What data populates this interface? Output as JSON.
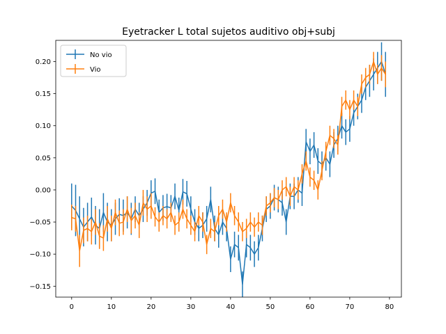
{
  "chart_data": {
    "type": "line",
    "title": "Eyetracker L total sujetos auditivo obj+subj",
    "xlabel": "",
    "ylabel": "",
    "xlim": [
      -4,
      83
    ],
    "ylim": [
      -0.167,
      0.233
    ],
    "xticks": [
      0,
      10,
      20,
      30,
      40,
      50,
      60,
      70,
      80
    ],
    "yticks": [
      -0.15,
      -0.1,
      -0.05,
      0.0,
      0.05,
      0.1,
      0.15,
      0.2
    ],
    "ytick_labels": [
      "−0.15",
      "−0.10",
      "−0.05",
      "0.00",
      "0.05",
      "0.10",
      "0.15",
      "0.20"
    ],
    "grid": false,
    "legend": "top-left",
    "error_bars": true,
    "series": [
      {
        "name": "No vio",
        "color": "#1f77b4",
        "x": [
          0,
          1,
          2,
          3,
          4,
          5,
          6,
          7,
          8,
          9,
          10,
          11,
          12,
          13,
          14,
          15,
          16,
          17,
          18,
          19,
          20,
          21,
          22,
          23,
          24,
          25,
          26,
          27,
          28,
          29,
          30,
          31,
          32,
          33,
          34,
          35,
          36,
          37,
          38,
          39,
          40,
          41,
          42,
          43,
          44,
          45,
          46,
          47,
          48,
          49,
          50,
          51,
          52,
          53,
          54,
          55,
          56,
          57,
          58,
          59,
          60,
          61,
          62,
          63,
          64,
          65,
          66,
          67,
          68,
          69,
          70,
          71,
          72,
          73,
          74,
          75,
          76,
          77,
          78,
          79
        ],
        "values": [
          -0.025,
          -0.032,
          -0.045,
          -0.058,
          -0.05,
          -0.042,
          -0.055,
          -0.06,
          -0.035,
          -0.05,
          -0.055,
          -0.045,
          -0.038,
          -0.04,
          -0.035,
          -0.045,
          -0.03,
          -0.04,
          -0.03,
          -0.02,
          -0.005,
          -0.002,
          -0.035,
          -0.028,
          -0.026,
          -0.028,
          -0.01,
          -0.032,
          -0.003,
          -0.006,
          -0.03,
          -0.05,
          -0.06,
          -0.055,
          -0.045,
          -0.015,
          -0.06,
          -0.07,
          -0.05,
          -0.06,
          -0.108,
          -0.085,
          -0.09,
          -0.147,
          -0.085,
          -0.09,
          -0.1,
          -0.09,
          -0.06,
          -0.03,
          -0.025,
          -0.012,
          -0.015,
          -0.02,
          -0.05,
          -0.01,
          -0.01,
          0.0,
          -0.005,
          0.075,
          0.06,
          0.07,
          0.045,
          0.04,
          0.05,
          0.04,
          0.07,
          0.08,
          0.1,
          0.09,
          0.095,
          0.12,
          0.13,
          0.14,
          0.16,
          0.17,
          0.18,
          0.19,
          0.2,
          0.18
        ],
        "errors": [
          0.035,
          0.04,
          0.035,
          0.03,
          0.03,
          0.03,
          0.03,
          0.03,
          0.03,
          0.03,
          0.025,
          0.025,
          0.025,
          0.025,
          0.025,
          0.025,
          0.02,
          0.02,
          0.02,
          0.02,
          0.02,
          0.02,
          0.02,
          0.02,
          0.02,
          0.02,
          0.02,
          0.02,
          0.02,
          0.02,
          0.02,
          0.02,
          0.02,
          0.02,
          0.02,
          0.02,
          0.02,
          0.02,
          0.02,
          0.02,
          0.02,
          0.02,
          0.02,
          0.02,
          0.02,
          0.02,
          0.02,
          0.02,
          0.02,
          0.02,
          0.02,
          0.02,
          0.02,
          0.02,
          0.02,
          0.02,
          0.02,
          0.02,
          0.02,
          0.02,
          0.02,
          0.02,
          0.02,
          0.02,
          0.02,
          0.02,
          0.02,
          0.02,
          0.02,
          0.02,
          0.02,
          0.02,
          0.02,
          0.02,
          0.02,
          0.025,
          0.025,
          0.025,
          0.03,
          0.035
        ]
      },
      {
        "name": "Vio",
        "color": "#ff7f0e",
        "x": [
          0,
          1,
          2,
          3,
          4,
          5,
          6,
          7,
          8,
          9,
          10,
          11,
          12,
          13,
          14,
          15,
          16,
          17,
          18,
          19,
          20,
          21,
          22,
          23,
          24,
          25,
          26,
          27,
          28,
          29,
          30,
          31,
          32,
          33,
          34,
          35,
          36,
          37,
          38,
          39,
          40,
          41,
          42,
          43,
          44,
          45,
          46,
          47,
          48,
          49,
          50,
          51,
          52,
          53,
          54,
          55,
          56,
          57,
          58,
          59,
          60,
          61,
          62,
          63,
          64,
          65,
          66,
          67,
          68,
          69,
          70,
          71,
          72,
          73,
          74,
          75,
          76,
          77,
          78,
          79
        ],
        "values": [
          -0.043,
          -0.045,
          -0.095,
          -0.063,
          -0.06,
          -0.065,
          -0.05,
          -0.072,
          -0.075,
          -0.045,
          -0.06,
          -0.035,
          -0.052,
          -0.05,
          -0.03,
          -0.048,
          -0.04,
          -0.055,
          -0.02,
          -0.03,
          -0.025,
          -0.042,
          -0.05,
          -0.04,
          -0.045,
          -0.035,
          -0.055,
          -0.05,
          -0.03,
          -0.045,
          -0.055,
          -0.065,
          -0.04,
          -0.05,
          -0.085,
          -0.06,
          -0.065,
          -0.04,
          -0.03,
          -0.05,
          -0.02,
          -0.04,
          -0.05,
          -0.065,
          -0.06,
          -0.05,
          -0.058,
          -0.05,
          -0.055,
          -0.025,
          -0.02,
          -0.012,
          -0.015,
          0.0,
          0.005,
          -0.01,
          0.005,
          0.0,
          0.025,
          0.045,
          0.02,
          0.015,
          0.0,
          0.03,
          0.06,
          0.085,
          0.08,
          0.07,
          0.13,
          0.14,
          0.125,
          0.14,
          0.13,
          0.165,
          0.175,
          0.18,
          0.2,
          0.18,
          0.19,
          0.18
        ],
        "errors": [
          0.02,
          0.02,
          0.025,
          0.02,
          0.02,
          0.02,
          0.02,
          0.02,
          0.02,
          0.02,
          0.02,
          0.02,
          0.02,
          0.02,
          0.02,
          0.02,
          0.02,
          0.02,
          0.02,
          0.02,
          0.02,
          0.015,
          0.015,
          0.015,
          0.015,
          0.015,
          0.015,
          0.015,
          0.015,
          0.015,
          0.015,
          0.015,
          0.015,
          0.015,
          0.015,
          0.015,
          0.015,
          0.015,
          0.015,
          0.015,
          0.015,
          0.015,
          0.015,
          0.015,
          0.015,
          0.015,
          0.015,
          0.015,
          0.015,
          0.015,
          0.015,
          0.015,
          0.015,
          0.015,
          0.015,
          0.015,
          0.015,
          0.015,
          0.015,
          0.015,
          0.015,
          0.015,
          0.015,
          0.015,
          0.015,
          0.015,
          0.015,
          0.015,
          0.015,
          0.015,
          0.015,
          0.015,
          0.015,
          0.015,
          0.015,
          0.015,
          0.015,
          0.015,
          0.02,
          0.02
        ]
      }
    ]
  }
}
